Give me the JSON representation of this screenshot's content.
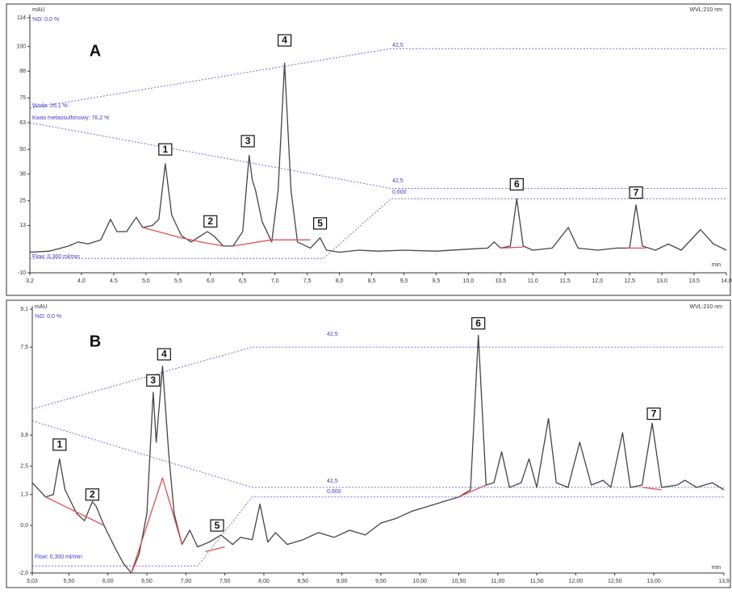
{
  "chart_data": [
    {
      "type": "line",
      "annotations": [
        "mAU",
        "%D: 0,0 %",
        "WVL:210 nm",
        "min",
        "A",
        "42,5",
        "42,5",
        "0,600",
        "Woda: 16,1 %",
        "Kwas metaosulfonowy: 76,2 %",
        "Flow: 0,300 ml/min"
      ],
      "peak_labels": [
        "1",
        "2",
        "3",
        "4",
        "5",
        "6",
        "7"
      ],
      "xlim": [
        3.2,
        14.0
      ],
      "ylim": [
        -10,
        114
      ],
      "xticks": [
        {
          "value": 3.2,
          "label": "3,2"
        },
        {
          "value": 4.0,
          "label": "4,0"
        },
        {
          "value": 4.5,
          "label": "4,5"
        },
        {
          "value": 5.0,
          "label": "5,0"
        },
        {
          "value": 5.5,
          "label": "5,5"
        },
        {
          "value": 6.0,
          "label": "6,0"
        },
        {
          "value": 6.5,
          "label": "6,5"
        },
        {
          "value": 7.0,
          "label": "7,0"
        },
        {
          "value": 7.5,
          "label": "7,5"
        },
        {
          "value": 8.0,
          "label": "8,0"
        },
        {
          "value": 8.5,
          "label": "8,5"
        },
        {
          "value": 9.0,
          "label": "9,0"
        },
        {
          "value": 9.5,
          "label": "9,5"
        },
        {
          "value": 10.0,
          "label": "10,0"
        },
        {
          "value": 10.5,
          "label": "10,5"
        },
        {
          "value": 11.0,
          "label": "11,0"
        },
        {
          "value": 11.5,
          "label": "11,5"
        },
        {
          "value": 12.0,
          "label": "12,0"
        },
        {
          "value": 12.5,
          "label": "12,5"
        },
        {
          "value": 13.0,
          "label": "13,0"
        },
        {
          "value": 13.5,
          "label": "13,5"
        },
        {
          "value": 14.0,
          "label": "14,0"
        }
      ],
      "yticks": [
        114,
        100,
        88,
        75,
        63,
        50,
        38,
        25,
        13,
        -10
      ],
      "series": [
        {
          "color": "#7070e0",
          "style": "dashed",
          "x": [
            3.2,
            8.8,
            14.0
          ],
          "values": [
            70,
            99,
            99
          ]
        },
        {
          "color": "#7070e0",
          "style": "dashed",
          "x": [
            3.2,
            8.8,
            14.0
          ],
          "values": [
            63,
            31,
            31
          ]
        },
        {
          "color": "#7070e0",
          "style": "dashed",
          "x": [
            3.2,
            7.75,
            8.8,
            14.0
          ],
          "values": [
            -3,
            -3,
            26,
            26
          ]
        },
        {
          "color": "#444444",
          "style": "solid",
          "x": [
            3.2,
            3.5,
            3.8,
            3.95,
            4.1,
            4.3,
            4.45,
            4.55,
            4.7,
            4.85,
            4.95,
            5.1,
            5.2,
            5.3,
            5.4,
            5.55,
            5.7,
            5.85,
            5.95,
            6.05,
            6.2,
            6.35,
            6.5,
            6.6,
            6.65,
            6.7,
            6.8,
            6.95,
            7.05,
            7.15,
            7.25,
            7.35,
            7.55,
            7.7,
            7.8,
            8.0,
            8.3,
            8.6,
            9.0,
            9.5,
            10.0,
            10.3,
            10.4,
            10.5,
            10.65,
            10.75,
            10.85,
            11.0,
            11.3,
            11.55,
            11.7,
            12.0,
            12.3,
            12.5,
            12.6,
            12.7,
            12.9,
            13.1,
            13.3,
            13.6,
            13.8,
            14.0
          ],
          "values": [
            0,
            0.5,
            3,
            5,
            4,
            6,
            16,
            10,
            10,
            17,
            12,
            13,
            16,
            43,
            18,
            8,
            5,
            8,
            10,
            8,
            3,
            3,
            10,
            47,
            35,
            30,
            15,
            5,
            30,
            92,
            30,
            5,
            2,
            7,
            1,
            0,
            1,
            0.5,
            1,
            0.5,
            1.5,
            2,
            5,
            2,
            3,
            26,
            3,
            1,
            2,
            12,
            2,
            1,
            2,
            2,
            23,
            3,
            1,
            4,
            1,
            11,
            4,
            1
          ]
        },
        {
          "color": "#e05050",
          "style": "solid",
          "x": [
            4.95,
            5.55,
            5.85,
            6.2,
            6.25,
            6.35,
            6.95,
            7.55,
            7.6,
            10.5,
            10.85,
            10.9,
            12.45,
            12.75
          ],
          "values": [
            12,
            7,
            5,
            3,
            null,
            3,
            6,
            6,
            null,
            2,
            2.5,
            null,
            2,
            2
          ]
        }
      ]
    },
    {
      "type": "line",
      "annotations": [
        "mAU",
        "%D: 0,0 %",
        "WVL:210 nm",
        "min",
        "B",
        "42,5",
        "42,5",
        "0,600",
        "Flow: 0,300 ml/min"
      ],
      "peak_labels": [
        "1",
        "2",
        "3",
        "4",
        "5",
        "6",
        "7"
      ],
      "xlim": [
        5.03,
        13.9
      ],
      "ylim": [
        -2.0,
        9.1
      ],
      "xticks": [
        {
          "value": 5.03,
          "label": "5,03"
        },
        {
          "value": 5.5,
          "label": "5,50"
        },
        {
          "value": 6.0,
          "label": "6,00"
        },
        {
          "value": 6.5,
          "label": "6,50"
        },
        {
          "value": 7.0,
          "label": "7,00"
        },
        {
          "value": 7.5,
          "label": "7,50"
        },
        {
          "value": 8.0,
          "label": "8,00"
        },
        {
          "value": 8.5,
          "label": "8,50"
        },
        {
          "value": 9.0,
          "label": "9,00"
        },
        {
          "value": 9.5,
          "label": "9,50"
        },
        {
          "value": 10.0,
          "label": "10,00"
        },
        {
          "value": 10.5,
          "label": "10,50"
        },
        {
          "value": 11.0,
          "label": "11,00"
        },
        {
          "value": 11.5,
          "label": "11,50"
        },
        {
          "value": 12.0,
          "label": "12,00"
        },
        {
          "value": 12.5,
          "label": "12,50"
        },
        {
          "value": 13.0,
          "label": "13,00"
        },
        {
          "value": 13.9,
          "label": "13,9"
        }
      ],
      "yticks": [
        {
          "value": 9.1,
          "label": "9,1"
        },
        {
          "value": 7.5,
          "label": "7,5"
        },
        {
          "value": 3.8,
          "label": "3,8"
        },
        {
          "value": 2.5,
          "label": "2,5"
        },
        {
          "value": 1.3,
          "label": "1,3"
        },
        {
          "value": 0.0,
          "label": "0,0"
        },
        {
          "value": -2.0,
          "label": "-2,0"
        }
      ],
      "series": [
        {
          "color": "#7070e0",
          "style": "dashed",
          "x": [
            5.03,
            7.85,
            13.9
          ],
          "values": [
            4.9,
            7.5,
            7.5
          ]
        },
        {
          "color": "#7070e0",
          "style": "dashed",
          "x": [
            5.03,
            7.85,
            13.9
          ],
          "values": [
            4.4,
            1.6,
            1.6
          ]
        },
        {
          "color": "#7070e0",
          "style": "dashed",
          "x": [
            5.03,
            7.15,
            7.85,
            13.9
          ],
          "values": [
            -1.7,
            -1.7,
            1.2,
            1.2
          ]
        },
        {
          "color": "#444444",
          "style": "solid",
          "x": [
            5.03,
            5.2,
            5.3,
            5.38,
            5.45,
            5.6,
            5.7,
            5.8,
            5.85,
            5.95,
            6.1,
            6.2,
            6.3,
            6.4,
            6.5,
            6.58,
            6.62,
            6.7,
            6.78,
            6.85,
            6.95,
            7.05,
            7.15,
            7.3,
            7.45,
            7.6,
            7.7,
            7.85,
            7.95,
            8.05,
            8.15,
            8.3,
            8.5,
            8.7,
            8.9,
            9.1,
            9.3,
            9.5,
            9.7,
            9.9,
            10.1,
            10.3,
            10.5,
            10.65,
            10.75,
            10.85,
            10.95,
            11.05,
            11.15,
            11.3,
            11.4,
            11.5,
            11.65,
            11.75,
            11.9,
            12.05,
            12.2,
            12.35,
            12.45,
            12.6,
            12.7,
            12.85,
            12.98,
            13.1,
            13.3,
            13.4,
            13.55,
            13.75,
            13.9
          ],
          "values": [
            1.8,
            1.2,
            1.3,
            2.8,
            1.5,
            0.5,
            0.2,
            1.0,
            0.8,
            0.0,
            -1.0,
            -1.6,
            -2.0,
            -1.2,
            0.5,
            5.6,
            3.5,
            6.7,
            3,
            0.5,
            -0.8,
            -0.2,
            -0.9,
            -0.7,
            -0.4,
            -0.8,
            -0.5,
            -0.6,
            0.9,
            -0.7,
            -0.3,
            -0.8,
            -0.6,
            -0.3,
            -0.5,
            -0.2,
            -0.4,
            0.1,
            0.3,
            0.6,
            0.8,
            1.0,
            1.2,
            1.5,
            8.0,
            1.7,
            1.8,
            3.1,
            1.6,
            1.8,
            2.8,
            1.6,
            4.5,
            1.8,
            1.6,
            3.5,
            1.7,
            1.9,
            1.6,
            3.9,
            1.6,
            1.7,
            4.3,
            1.6,
            1.7,
            1.9,
            1.6,
            1.8,
            1.5
          ]
        },
        {
          "color": "#e05050",
          "style": "solid",
          "x": [
            5.2,
            5.95,
            6.0,
            6.3,
            6.7,
            6.95,
            7.0,
            7.25,
            7.5,
            7.55,
            10.5,
            10.85,
            10.9,
            12.85,
            13.1
          ],
          "values": [
            1.2,
            0.0,
            null,
            -2.0,
            2.0,
            -0.8,
            null,
            -1.1,
            -0.9,
            null,
            1.2,
            1.7,
            null,
            1.6,
            1.5
          ]
        }
      ]
    }
  ]
}
